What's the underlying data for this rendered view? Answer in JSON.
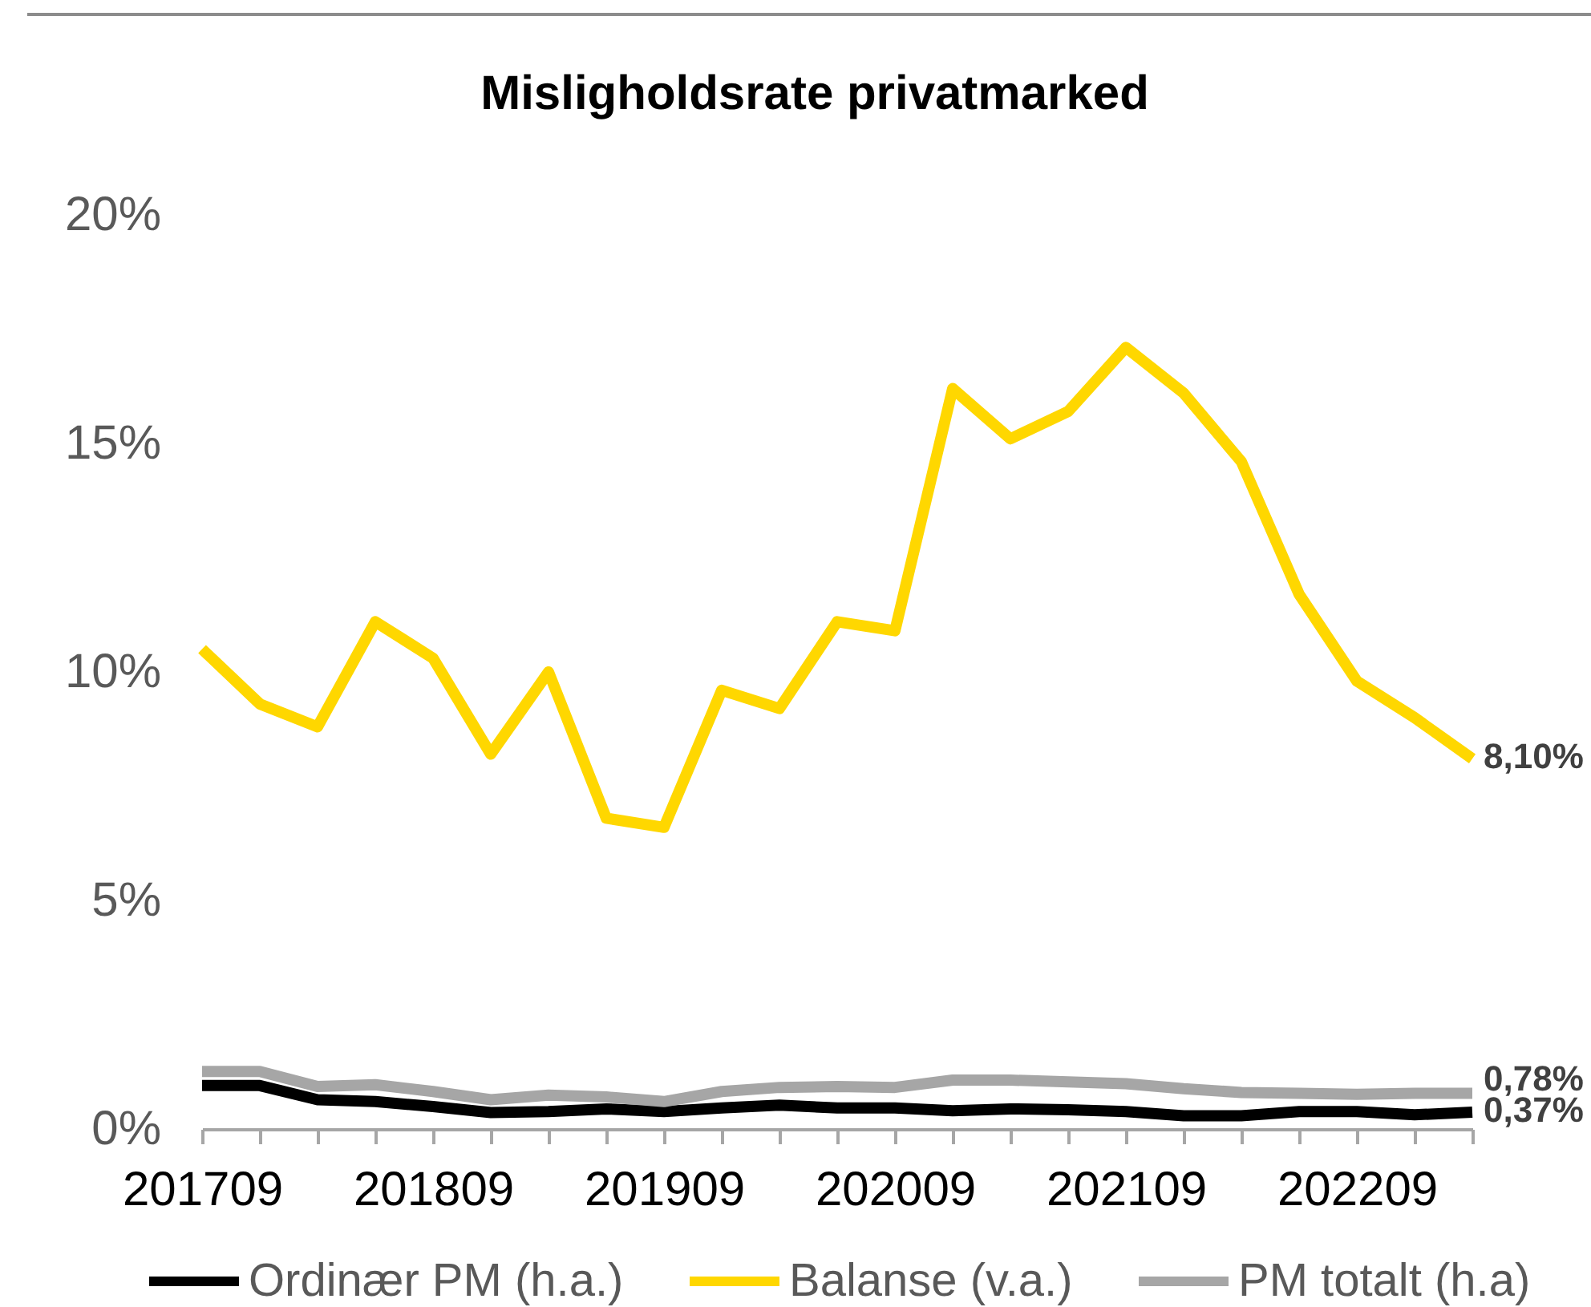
{
  "chart_data": {
    "type": "line",
    "title": "Misligholdsrate privatmarked",
    "categories": [
      "201709",
      null,
      null,
      null,
      "201809",
      null,
      null,
      null,
      "201909",
      null,
      null,
      null,
      "202009",
      null,
      null,
      null,
      "202109",
      null,
      null,
      null,
      "202209",
      null,
      null
    ],
    "series": [
      {
        "name": "Ordinær PM (h.a.)",
        "color": "#000000",
        "values": [
          0.95,
          0.95,
          0.64,
          0.6,
          0.49,
          0.36,
          0.38,
          0.44,
          0.38,
          0.46,
          0.52,
          0.46,
          0.46,
          0.4,
          0.44,
          0.42,
          0.38,
          0.29,
          0.29,
          0.38,
          0.38,
          0.31,
          0.37
        ],
        "value_labels": [
          null,
          null,
          null,
          null,
          null,
          null,
          null,
          null,
          null,
          null,
          null,
          null,
          null,
          null,
          null,
          null,
          null,
          null,
          null,
          null,
          null,
          null,
          "0,37%"
        ]
      },
      {
        "name": "Balanse (v.a.)",
        "color": "#ffd700",
        "values": [
          10.5,
          9.3,
          8.8,
          11.1,
          10.3,
          8.2,
          10.0,
          6.8,
          6.6,
          9.6,
          9.2,
          11.1,
          10.9,
          16.2,
          15.1,
          15.7,
          17.1,
          16.1,
          14.6,
          11.7,
          9.8,
          9.0,
          8.1
        ],
        "value_labels": [
          null,
          null,
          null,
          null,
          null,
          null,
          null,
          null,
          null,
          null,
          null,
          null,
          null,
          null,
          null,
          null,
          null,
          null,
          null,
          null,
          null,
          null,
          "8,10%"
        ]
      },
      {
        "name": "PM totalt (h.a)",
        "color": "#a6a6a6",
        "values": [
          1.26,
          1.26,
          0.93,
          0.97,
          0.82,
          0.64,
          0.74,
          0.7,
          0.6,
          0.82,
          0.91,
          0.93,
          0.91,
          1.07,
          1.07,
          1.03,
          0.99,
          0.88,
          0.8,
          0.78,
          0.76,
          0.78,
          0.78
        ],
        "value_labels": [
          null,
          null,
          null,
          null,
          null,
          null,
          null,
          null,
          null,
          null,
          null,
          null,
          null,
          null,
          null,
          null,
          null,
          null,
          null,
          null,
          null,
          null,
          "0,78%"
        ]
      }
    ],
    "ylim": [
      0,
      20
    ],
    "yticks": [
      {
        "value": 0,
        "label": "0%"
      },
      {
        "value": 5,
        "label": "5%"
      },
      {
        "value": 10,
        "label": "10%"
      },
      {
        "value": 15,
        "label": "15%"
      },
      {
        "value": 20,
        "label": "20%"
      }
    ],
    "grid": false,
    "legend": "bottom"
  }
}
